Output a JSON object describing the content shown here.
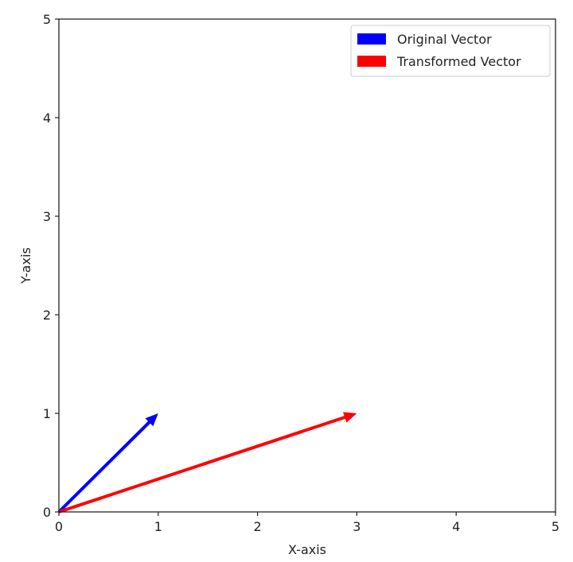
{
  "chart_data": {
    "type": "quiver",
    "title": "",
    "xlabel": "X-axis",
    "ylabel": "Y-axis",
    "xlim": [
      0,
      5
    ],
    "ylim": [
      0,
      5
    ],
    "xticks": [
      "0",
      "1",
      "2",
      "3",
      "4",
      "5"
    ],
    "yticks": [
      "0",
      "1",
      "2",
      "3",
      "4",
      "5"
    ],
    "grid": false,
    "legend_position": "top-right",
    "series": [
      {
        "name": "Original Vector",
        "origin": [
          0,
          0
        ],
        "vector": [
          1,
          1
        ],
        "color": "#0000ff"
      },
      {
        "name": "Transformed Vector",
        "origin": [
          0,
          0
        ],
        "vector": [
          3,
          1
        ],
        "color": "#ff0000"
      }
    ]
  }
}
